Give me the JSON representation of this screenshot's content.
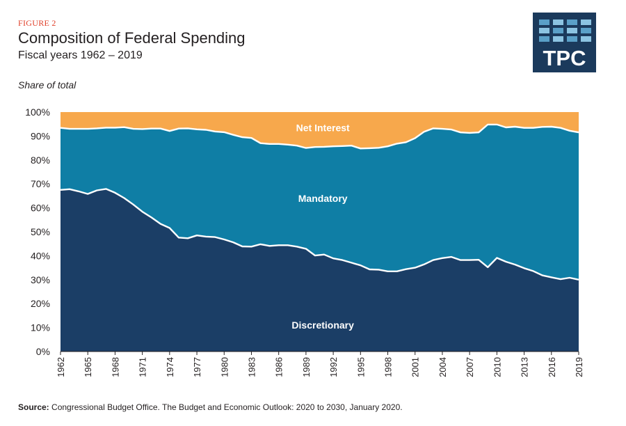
{
  "header": {
    "figure_label": "FIGURE 2",
    "title": "Composition of Federal Spending",
    "subtitle": "Fiscal years 1962 – 2019"
  },
  "logo": {
    "text": "TPC",
    "color": "#1b3a5c",
    "accent": "#5aa0c8"
  },
  "footer": {
    "source_label": "Source:",
    "source_text": " Congressional Budget Office. The Budget and Economic Outlook: 2020 to 2030, January 2020."
  },
  "colors": {
    "discretionary": "#1b3e66",
    "mandatory": "#0f7ea5",
    "net_interest": "#f7a84c",
    "label_text": "#ffffff"
  },
  "chart_data": {
    "type": "area",
    "stacked": true,
    "ylabel": "Share of total",
    "ylim": [
      0,
      100
    ],
    "yticks": [
      "0%",
      "10%",
      "20%",
      "30%",
      "40%",
      "50%",
      "60%",
      "70%",
      "80%",
      "90%",
      "100%"
    ],
    "xticks": [
      1962,
      1965,
      1968,
      1971,
      1974,
      1977,
      1980,
      1983,
      1986,
      1989,
      1992,
      1995,
      1998,
      2001,
      2004,
      2007,
      2010,
      2013,
      2016,
      2019
    ],
    "x": [
      1962,
      1963,
      1964,
      1965,
      1966,
      1967,
      1968,
      1969,
      1970,
      1971,
      1972,
      1973,
      1974,
      1975,
      1976,
      1977,
      1978,
      1979,
      1980,
      1981,
      1982,
      1983,
      1984,
      1985,
      1986,
      1987,
      1988,
      1989,
      1990,
      1991,
      1992,
      1993,
      1994,
      1995,
      1996,
      1997,
      1998,
      1999,
      2000,
      2001,
      2002,
      2003,
      2004,
      2005,
      2006,
      2007,
      2008,
      2009,
      2010,
      2011,
      2012,
      2013,
      2014,
      2015,
      2016,
      2017,
      2018,
      2019
    ],
    "series": [
      {
        "name": "Discretionary",
        "values": [
          67.5,
          67.8,
          66.9,
          65.8,
          67.3,
          67.9,
          66.3,
          64.1,
          61.4,
          58.4,
          56.0,
          53.3,
          51.6,
          47.6,
          47.3,
          48.5,
          48.0,
          47.8,
          46.8,
          45.6,
          43.9,
          43.8,
          44.8,
          44.1,
          44.4,
          44.4,
          43.8,
          42.9,
          40.1,
          40.5,
          38.9,
          38.2,
          37.1,
          36.0,
          34.3,
          34.2,
          33.5,
          33.5,
          34.4,
          35.0,
          36.4,
          38.2,
          39.0,
          39.5,
          38.2,
          38.2,
          38.3,
          35.2,
          39.1,
          37.5,
          36.3,
          34.8,
          33.6,
          31.8,
          31.0,
          30.2,
          30.8,
          30.0
        ]
      },
      {
        "name": "Mandatory",
        "values": [
          25.9,
          25.2,
          26.1,
          27.2,
          25.9,
          25.6,
          27.2,
          29.6,
          31.6,
          34.5,
          37.1,
          39.8,
          40.5,
          45.5,
          45.9,
          44.3,
          44.6,
          44.1,
          44.8,
          44.9,
          45.6,
          45.4,
          42.2,
          42.6,
          42.3,
          42.0,
          42.2,
          42.1,
          45.3,
          45.0,
          46.8,
          47.6,
          48.9,
          48.8,
          50.6,
          50.9,
          52.2,
          53.3,
          53.0,
          54.1,
          55.4,
          55.0,
          54.0,
          53.2,
          53.3,
          53.1,
          53.2,
          59.6,
          55.7,
          56.1,
          57.6,
          58.6,
          59.8,
          62.0,
          62.9,
          63.2,
          61.4,
          61.5
        ]
      },
      {
        "name": "Net Interest",
        "values": [
          6.6,
          7.0,
          7.0,
          7.0,
          6.8,
          6.5,
          6.5,
          6.3,
          7.0,
          7.1,
          6.9,
          6.9,
          7.9,
          6.9,
          6.8,
          7.2,
          7.4,
          8.1,
          8.4,
          9.5,
          10.5,
          10.8,
          13.0,
          13.3,
          13.3,
          13.6,
          14.0,
          15.0,
          14.6,
          14.5,
          14.3,
          14.2,
          14.0,
          15.2,
          15.1,
          14.9,
          14.3,
          13.2,
          12.6,
          10.9,
          8.2,
          6.8,
          7.0,
          7.3,
          8.5,
          8.7,
          8.5,
          5.2,
          5.2,
          6.4,
          6.1,
          6.6,
          6.6,
          6.2,
          6.1,
          6.6,
          7.8,
          8.5
        ]
      }
    ],
    "series_labels": [
      "Discretionary",
      "Mandatory",
      "Net Interest"
    ],
    "grid": false,
    "legend": "inline labels on areas"
  }
}
